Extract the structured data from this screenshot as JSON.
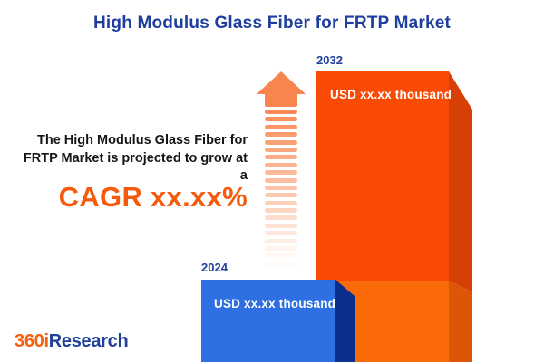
{
  "title": "High Modulus Glass Fiber for FRTP Market",
  "annotation": {
    "intro_text": "The High Modulus Glass Fiber for\nFRTP Market is projected to grow at\na",
    "cagr_text": "CAGR xx.xx%"
  },
  "chart_data": {
    "type": "bar",
    "categories": [
      "2024",
      "2032"
    ],
    "values": [
      null,
      null
    ],
    "value_labels": [
      "USD xx.xx thousand",
      "USD xx.xx thousand"
    ],
    "title": "High Modulus Glass Fiber for FRTP Market",
    "annotation": "The High Modulus Glass Fiber for FRTP Market is projected to grow at a CAGR xx.xx%",
    "legend": false,
    "axes": false
  },
  "bars": {
    "b2024": {
      "year": "2024",
      "value_label": "USD xx.xx thousand"
    },
    "b2032": {
      "year": "2032",
      "value_label": "USD xx.xx thousand"
    }
  },
  "logo": {
    "prefix": "360i",
    "suffix": "Research"
  },
  "colors": {
    "title_navy": "#1F3F9E",
    "label_navy": "#1F3F9E",
    "text_black": "#161616",
    "cagr_orange": "#F55B0C",
    "arrow_salmon": "#F9854E",
    "bar2032_face_upper": "#F94B06",
    "bar2032_face_lower": "#FA6A08",
    "bar2032_side_upper": "#D64004",
    "bar2032_side_lower": "#DC5605",
    "bar2024_face": "#2E6FE2",
    "bar2024_side": "#0A2F8C",
    "value_text_white": "#FFFFFF",
    "logo_orange": "#F4600D",
    "logo_navy": "#21409A"
  }
}
